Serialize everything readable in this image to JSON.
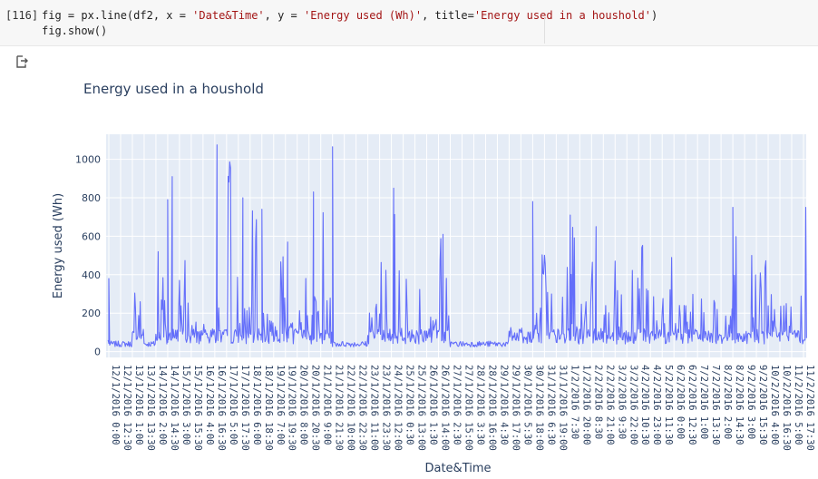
{
  "cell": {
    "exec_count": "[116]",
    "code_line1_parts": [
      {
        "t": "fig = px.line(df2, x = ",
        "c": ""
      },
      {
        "t": "'Date&Time'",
        "c": "str"
      },
      {
        "t": ", y = ",
        "c": ""
      },
      {
        "t": "'Energy used (Wh)'",
        "c": "str"
      },
      {
        "t": ", title=",
        "c": ""
      },
      {
        "t": "'Energy used in a houshold'",
        "c": "str"
      },
      {
        "t": ")",
        "c": ""
      }
    ],
    "code_line2": "fig.show()"
  },
  "output_icon": "output-redirect-icon",
  "chart_data": {
    "type": "line",
    "title": "Energy used in a houshold",
    "xlabel": "Date&Time",
    "ylabel": "Energy used (Wh)",
    "ylim": [
      -30,
      1130
    ],
    "yticks": [
      0,
      200,
      400,
      600,
      800,
      1000
    ],
    "grid": true,
    "line_color": "#636efa",
    "plot_bg": "#e5ecf6",
    "xtick_labels": [
      "12/1/2016 0:00",
      "12/1/2016 12:30",
      "13/1/2016 1:00",
      "13/1/2016 13:30",
      "14/1/2016 2:00",
      "14/1/2016 14:30",
      "15/1/2016 3:00",
      "15/1/2016 15:30",
      "16/1/2016 4:00",
      "16/1/2016 16:30",
      "17/1/2016 5:00",
      "17/1/2016 17:30",
      "18/1/2016 6:00",
      "18/1/2016 18:30",
      "19/1/2016 7:00",
      "19/1/2016 19:30",
      "20/1/2016 8:00",
      "20/1/2016 20:30",
      "21/1/2016 9:00",
      "21/1/2016 21:30",
      "22/1/2016 10:00",
      "22/1/2016 22:30",
      "23/1/2016 11:00",
      "23/1/2016 23:30",
      "24/1/2016 12:00",
      "25/1/2016 0:30",
      "25/1/2016 13:00",
      "26/1/2016 1:30",
      "26/1/2016 14:00",
      "27/1/2016 2:30",
      "27/1/2016 15:00",
      "28/1/2016 3:30",
      "28/1/2016 16:00",
      "29/1/2016 4:30",
      "29/1/2016 17:00",
      "30/1/2016 5:30",
      "30/1/2016 18:00",
      "31/1/2016 6:30",
      "31/1/2016 19:00",
      "1/2/2016 7:30",
      "1/2/2016 20:00",
      "2/2/2016 8:30",
      "2/2/2016 21:00",
      "3/2/2016 9:30",
      "3/2/2016 22:00",
      "4/2/2016 10:30",
      "4/2/2016 23:00",
      "5/2/2016 11:30",
      "6/2/2016 0:00",
      "6/2/2016 12:30",
      "7/2/2016 1:00",
      "7/2/2016 13:30",
      "8/2/2016 2:00",
      "8/2/2016 14:30",
      "9/2/2016 3:00",
      "9/2/2016 15:30",
      "10/2/2016 4:00",
      "10/2/2016 16:30",
      "11/2/2016 5:00",
      "11/2/2016 17:30"
    ],
    "y_per_tick": [
      40,
      60,
      380,
      60,
      400,
      650,
      500,
      120,
      100,
      400,
      1000,
      300,
      760,
      200,
      560,
      150,
      620,
      350,
      1020,
      50,
      60,
      60,
      300,
      500,
      850,
      450,
      390,
      200,
      600,
      50,
      40,
      30,
      30,
      30,
      100,
      150,
      700,
      620,
      450,
      700,
      300,
      600,
      350,
      550,
      450,
      600,
      400,
      500,
      300,
      300,
      280,
      300,
      250,
      700,
      650,
      500,
      300,
      330,
      300,
      750
    ],
    "peaks": [
      {
        "x": "12/1/2016 0:00",
        "y": 380
      },
      {
        "x": "14/1/2016 2:00",
        "y": 520
      },
      {
        "x": "14/1/2016 14:30",
        "y": 910
      },
      {
        "x": "14/1/2016 14:30",
        "y": 790
      },
      {
        "x": "16/1/2016 16:30",
        "y": 1075
      },
      {
        "x": "17/1/2016 17:30",
        "y": 800
      },
      {
        "x": "18/1/2016 18:30",
        "y": 740
      },
      {
        "x": "19/1/2016 19:30",
        "y": 570
      },
      {
        "x": "20/1/2016 20:30",
        "y": 830
      },
      {
        "x": "21/1/2016 21:30",
        "y": 1065
      },
      {
        "x": "24/1/2016 12:00",
        "y": 850
      },
      {
        "x": "26/1/2016 14:00",
        "y": 610
      },
      {
        "x": "30/1/2016 18:00",
        "y": 780
      },
      {
        "x": "1/2/2016 7:30",
        "y": 710
      },
      {
        "x": "2/2/2016 8:30",
        "y": 650
      },
      {
        "x": "8/2/2016 14:30",
        "y": 750
      },
      {
        "x": "11/2/2016 17:30",
        "y": 750
      }
    ]
  }
}
